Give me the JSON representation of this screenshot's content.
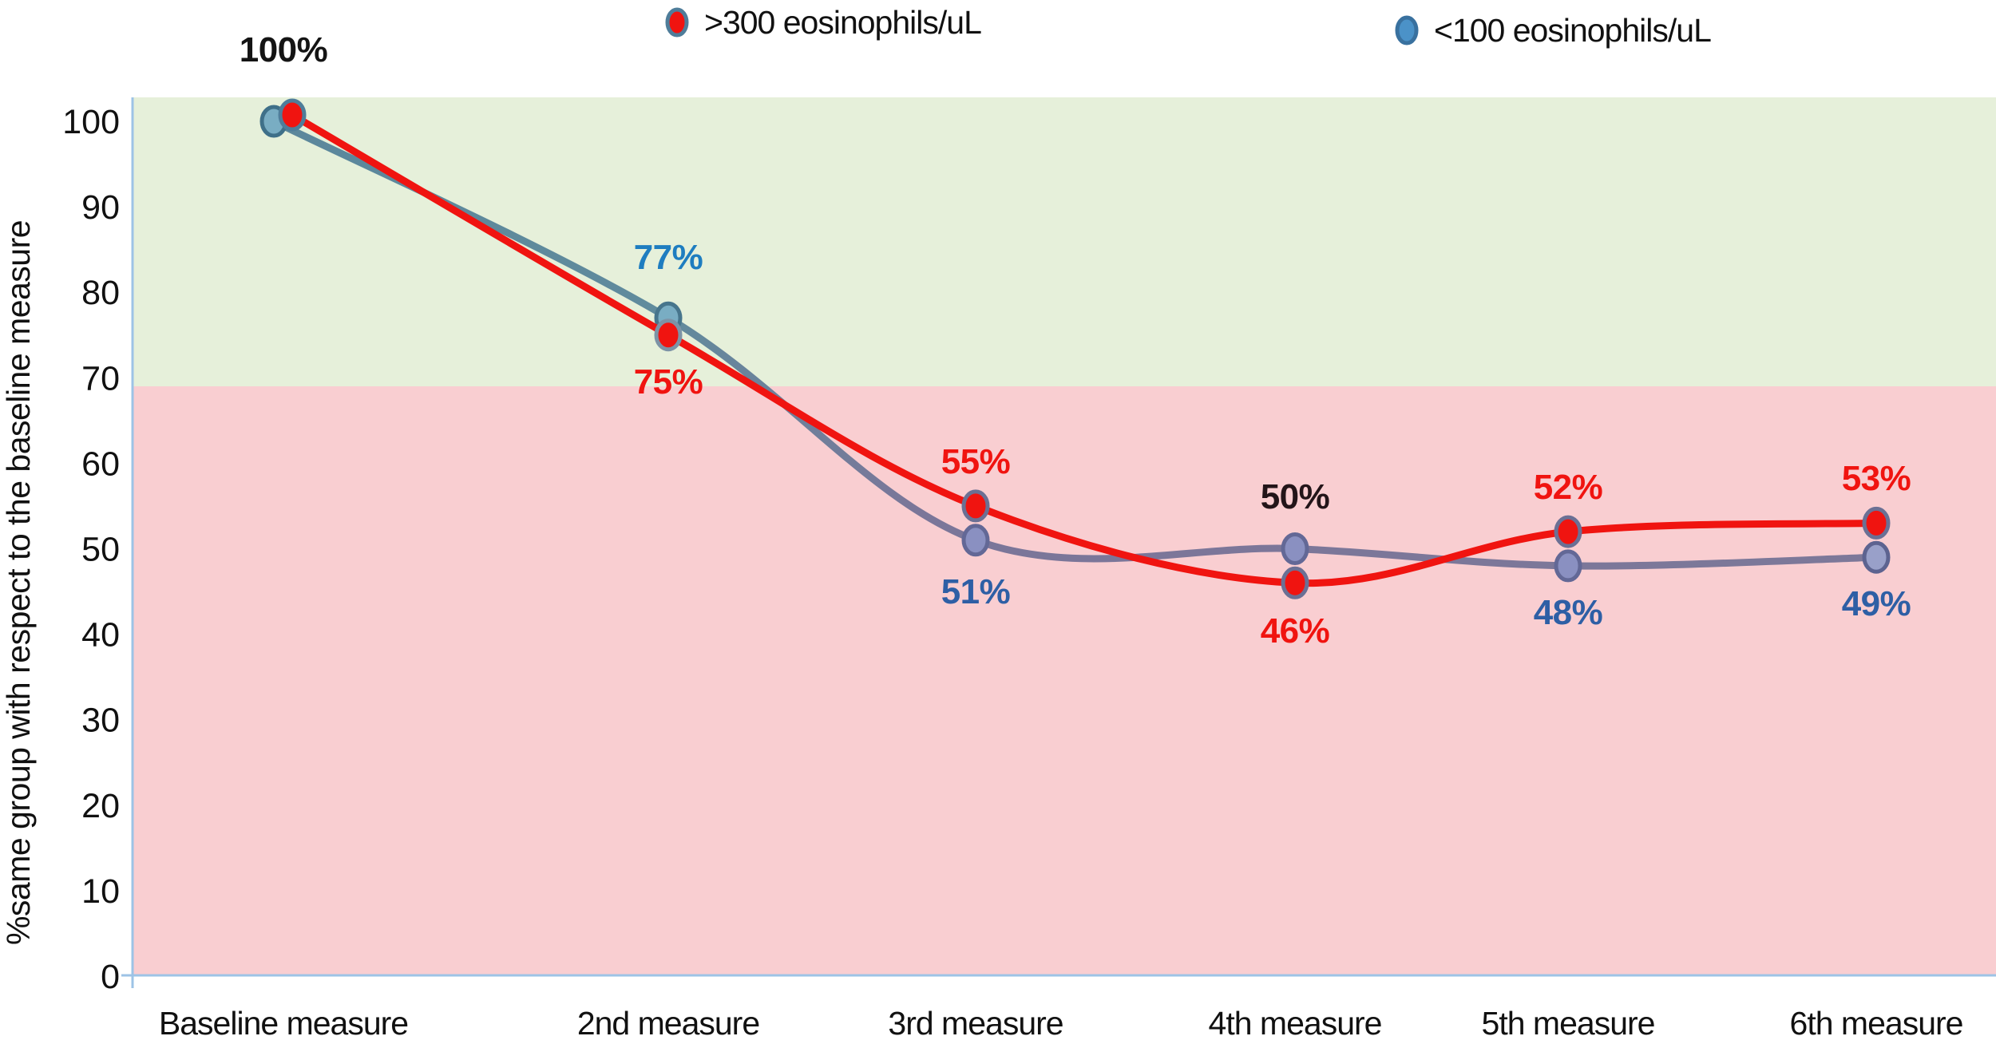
{
  "chart_data": {
    "type": "line",
    "title": "",
    "xlabel": "",
    "ylabel": "%same group with respect to the baseline measure",
    "categories": [
      "Baseline measure",
      "2nd measure",
      "3rd measure",
      "4th measure",
      "5th measure",
      "6th measure"
    ],
    "ylim": [
      0,
      100
    ],
    "yticks": [
      0,
      10,
      20,
      30,
      40,
      50,
      60,
      70,
      80,
      90,
      100
    ],
    "grid": "off",
    "legend_position": "top",
    "axis_color": "#9dc3e6",
    "background_bands": [
      {
        "name": "upper-green-zone",
        "from": 69,
        "to": 102.8,
        "color": "#e6f0da"
      },
      {
        "name": "lower-pink-zone",
        "from": 0,
        "to": 69,
        "color": "#f9ced1"
      }
    ],
    "series": [
      {
        "name": ">300 eosinophils/uL",
        "line_color": "#f01410",
        "marker_fills": [
          "#f01410",
          "#f01410",
          "#f01410",
          "#f01410",
          "#f01410",
          "#f01410"
        ],
        "marker_strokes": [
          "#4f7d9a",
          "#7d93a6",
          "#6b7094",
          "#6b7094",
          "#6b7094",
          "#6b7094"
        ],
        "values": [
          100,
          75,
          55,
          46,
          52,
          53
        ],
        "point_labels": [
          null,
          {
            "text": "75%",
            "color": "#f01410",
            "dy": 58
          },
          {
            "text": "55%",
            "color": "#f01410",
            "dy": -56
          },
          {
            "text": "46%",
            "color": "#f01410",
            "dy": 60
          },
          {
            "text": "52%",
            "color": "#f01410",
            "dy": -56
          },
          {
            "text": "53%",
            "color": "#f01410",
            "dy": -56
          }
        ]
      },
      {
        "name": "<100 eosinophils/uL",
        "line_gradient": [
          {
            "offset": 0,
            "color": "#58849a"
          },
          {
            "offset": 0.33,
            "color": "#608b9d"
          },
          {
            "offset": 0.46,
            "color": "#7b7699"
          },
          {
            "offset": 1,
            "color": "#7d7899"
          }
        ],
        "marker_fills": [
          "#79adc3",
          "#79adc3",
          "#8a90c1",
          "#8a90c1",
          "#8a90c1",
          "#99a0c9"
        ],
        "marker_strokes": [
          "#3f7089",
          "#47758c",
          "#636896",
          "#636896",
          "#636896",
          "#5d6390"
        ],
        "values": [
          100,
          77,
          51,
          50,
          48,
          49
        ],
        "point_labels": [
          null,
          {
            "text": "77%",
            "color": "#1e7dc0",
            "dy": -76
          },
          {
            "text": "51%",
            "color": "#2e5fa5",
            "dy": 64
          },
          {
            "text": "50%",
            "color": "#231519",
            "dy": -66
          },
          {
            "text": "48%",
            "color": "#2e5fa5",
            "dy": 58
          },
          {
            "text": "49%",
            "color": "#2e5fa5",
            "dy": 58
          }
        ]
      }
    ],
    "shared_labels": [
      {
        "text": "100%",
        "color": "#141414",
        "category": 0,
        "at_value": 100,
        "dy": -90
      }
    ],
    "legend": [
      {
        "label": ">300 eosinophils/uL",
        "marker_fill": "#f01410",
        "marker_stroke": "#4f7d9a"
      },
      {
        "label": "<100 eosinophils/uL",
        "marker_fill": "#4b92c8",
        "marker_stroke": "#39719f"
      }
    ]
  }
}
